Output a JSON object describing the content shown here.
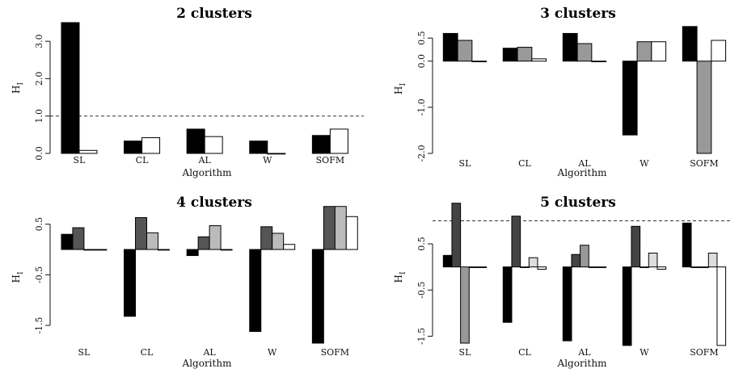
{
  "chart_data": [
    {
      "type": "bar",
      "title": "2 clusters",
      "xlabel": "Algorithm",
      "ylabel": "H",
      "ylabel_sub": "I",
      "ylim": [
        0,
        3.5
      ],
      "yticks": [
        "0.0",
        "1.0",
        "2.0",
        "3.0"
      ],
      "ytick_values": [
        0,
        1,
        2,
        3
      ],
      "reference_line": 1.0,
      "categories": [
        "SL",
        "CL",
        "AL",
        "W",
        "SOFM"
      ],
      "bar_fills": [
        "#000000",
        "#ffffff"
      ],
      "series": [
        {
          "values": [
            3.5,
            0.33,
            0.65,
            0.33,
            0.48
          ]
        },
        {
          "values": [
            0.08,
            0.42,
            0.45,
            0.0,
            0.65
          ]
        }
      ]
    },
    {
      "type": "bar",
      "title": "3 clusters",
      "xlabel": "Algorithm",
      "ylabel": "H",
      "ylabel_sub": "I",
      "ylim": [
        -2.0,
        0.8
      ],
      "yticks": [
        "-2.0",
        "-1.0",
        "0.0",
        "0.5"
      ],
      "ytick_values": [
        -2,
        -1,
        0,
        0.5
      ],
      "categories": [
        "SL",
        "CL",
        "AL",
        "W",
        "SOFM"
      ],
      "bar_fills": [
        "#000000",
        "#999999",
        "#ffffff"
      ],
      "series": [
        {
          "values": [
            0.6,
            0.28,
            0.6,
            -1.6,
            0.75
          ]
        },
        {
          "values": [
            0.45,
            0.3,
            0.38,
            0.42,
            -2.0
          ]
        },
        {
          "values": [
            0.0,
            0.05,
            0.0,
            0.42,
            0.45
          ]
        }
      ]
    },
    {
      "type": "bar",
      "title": "4 clusters",
      "xlabel": "Algorithm",
      "ylabel": "H",
      "ylabel_sub": "I",
      "ylim": [
        -1.85,
        0.75
      ],
      "yticks": [
        "-1.5",
        "-0.5",
        "0.5"
      ],
      "ytick_values": [
        -1.5,
        -0.5,
        0.5
      ],
      "categories": [
        "SL",
        "CL",
        "AL",
        "W",
        "SOFM"
      ],
      "bar_fills": [
        "#000000",
        "#555555",
        "#bbbbbb",
        "#ffffff"
      ],
      "series": [
        {
          "values": [
            0.3,
            -1.32,
            -0.12,
            -1.62,
            -1.85
          ]
        },
        {
          "values": [
            0.43,
            0.63,
            0.25,
            0.45,
            0.85
          ]
        },
        {
          "values": [
            0.0,
            0.33,
            0.47,
            0.32,
            0.85
          ]
        },
        {
          "values": [
            0.0,
            0.0,
            0.0,
            0.1,
            0.65
          ]
        }
      ]
    },
    {
      "type": "bar",
      "title": "5 clusters",
      "xlabel": "Algorithm",
      "ylabel": "H",
      "ylabel_sub": "I",
      "ylim": [
        -1.65,
        1.2
      ],
      "yticks": [
        "-1.5",
        "-0.5",
        "0.5"
      ],
      "ytick_values": [
        -1.5,
        -0.5,
        0.5
      ],
      "reference_line": 1.0,
      "categories": [
        "SL",
        "CL",
        "AL",
        "W",
        "SOFM"
      ],
      "bar_fills": [
        "#000000",
        "#444444",
        "#999999",
        "#dddddd",
        "#ffffff"
      ],
      "series": [
        {
          "values": [
            0.25,
            -1.2,
            -1.6,
            -1.7,
            0.95
          ]
        },
        {
          "values": [
            1.38,
            1.1,
            0.27,
            0.88,
            0.0
          ]
        },
        {
          "values": [
            -1.65,
            0.0,
            0.47,
            0.0,
            0.0
          ]
        },
        {
          "values": [
            0.0,
            0.2,
            0.0,
            0.3,
            0.3
          ]
        },
        {
          "values": [
            0.0,
            -0.05,
            0.0,
            -0.05,
            -1.7
          ]
        }
      ]
    }
  ]
}
